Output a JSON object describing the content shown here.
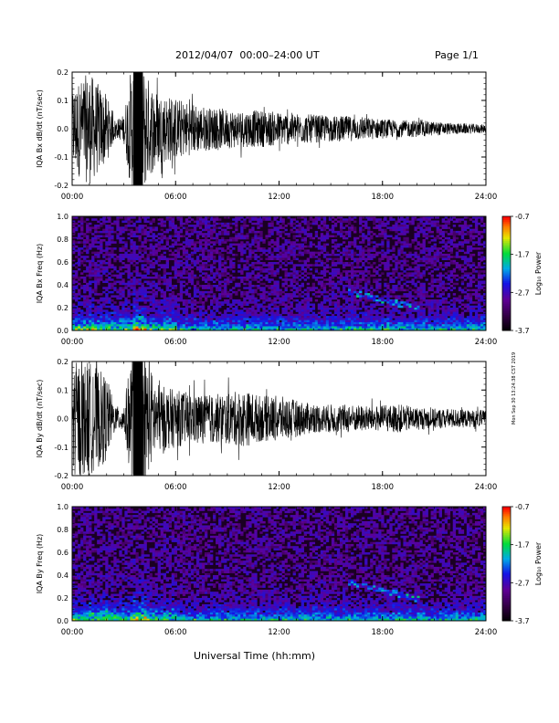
{
  "header": {
    "title": "2012/04/07  00:00–24:00 UT",
    "page": "Page 1/1"
  },
  "footer": {
    "xlabel": "Universal Time (hh:mm)",
    "side_stamp": "Mon Sep 30 13:24:38 CST 2019"
  },
  "chart_data": [
    {
      "type": "line",
      "ylabel": "IQA Bx dB/dt (nT/sec)",
      "xlim": [
        "00:00",
        "24:00"
      ],
      "ylim": [
        -0.2,
        0.2
      ],
      "xticks": [
        "00:00",
        "06:00",
        "12:00",
        "18:00",
        "24:00"
      ],
      "yticks": [
        "-0.2",
        "-0.1",
        "0.0",
        "0.1",
        "0.2"
      ],
      "envelope": {
        "hours": [
          0,
          1,
          2,
          2.5,
          3,
          3.5,
          4,
          4.5,
          5,
          6,
          7,
          8,
          9,
          10,
          11,
          12,
          13,
          14,
          15,
          16,
          17,
          18,
          19,
          20,
          21,
          22,
          23,
          24
        ],
        "amplitude": [
          0.15,
          0.2,
          0.12,
          0.03,
          0.05,
          0.25,
          0.25,
          0.17,
          0.13,
          0.11,
          0.09,
          0.075,
          0.07,
          0.065,
          0.065,
          0.06,
          0.055,
          0.05,
          0.045,
          0.045,
          0.04,
          0.035,
          0.03,
          0.03,
          0.025,
          0.02,
          0.018,
          0.015
        ]
      }
    },
    {
      "type": "heatmap",
      "ylabel": "IQA Bx Freq (Hz)",
      "xlim": [
        "00:00",
        "24:00"
      ],
      "ylim": [
        0,
        1.0
      ],
      "xticks": [
        "00:00",
        "06:00",
        "12:00",
        "18:00",
        "24:00"
      ],
      "yticks": [
        "0.0",
        "0.2",
        "0.4",
        "0.6",
        "0.8",
        "1.0"
      ],
      "colorbar": {
        "label": "Log₁₀ Power",
        "ticks": [
          "-0.7",
          "-1.7",
          "-2.7",
          "-3.7"
        ],
        "range": [
          -3.7,
          -0.7
        ]
      },
      "features": {
        "bright_hours": [
          3.5,
          4.2
        ],
        "band_hours": [
          16,
          20
        ],
        "band_hz": [
          0.2,
          0.35
        ]
      }
    },
    {
      "type": "line",
      "ylabel": "IQA By dB/dt (nT/sec)",
      "xlim": [
        "00:00",
        "24:00"
      ],
      "ylim": [
        -0.2,
        0.2
      ],
      "xticks": [
        "00:00",
        "06:00",
        "12:00",
        "18:00",
        "24:00"
      ],
      "yticks": [
        "-0.2",
        "-0.1",
        "0.0",
        "0.1",
        "0.2"
      ],
      "envelope": {
        "hours": [
          0,
          1,
          2,
          2.5,
          3,
          3.5,
          4,
          4.5,
          5,
          6,
          7,
          8,
          9,
          10,
          11,
          12,
          13,
          14,
          15,
          16,
          17,
          18,
          19,
          20,
          21,
          22,
          23,
          24
        ],
        "amplitude": [
          0.2,
          0.2,
          0.15,
          0.04,
          0.05,
          0.25,
          0.25,
          0.18,
          0.12,
          0.1,
          0.09,
          0.085,
          0.09,
          0.1,
          0.08,
          0.08,
          0.065,
          0.05,
          0.05,
          0.05,
          0.045,
          0.045,
          0.05,
          0.04,
          0.035,
          0.035,
          0.03,
          0.03
        ]
      }
    },
    {
      "type": "heatmap",
      "ylabel": "IQA By Freq (Hz)",
      "xlim": [
        "00:00",
        "24:00"
      ],
      "ylim": [
        0,
        1.0
      ],
      "xticks": [
        "00:00",
        "06:00",
        "12:00",
        "18:00",
        "24:00"
      ],
      "yticks": [
        "0.0",
        "0.2",
        "0.4",
        "0.6",
        "0.8",
        "1.0"
      ],
      "colorbar": {
        "label": "Log₁₀ Power",
        "ticks": [
          "-0.7",
          "-1.7",
          "-2.7",
          "-3.7"
        ],
        "range": [
          -3.7,
          -0.7
        ]
      },
      "features": {
        "bright_hours": [
          3.5,
          4.2
        ],
        "band_hours": [
          16,
          20
        ],
        "band_hz": [
          0.2,
          0.35
        ]
      }
    }
  ]
}
